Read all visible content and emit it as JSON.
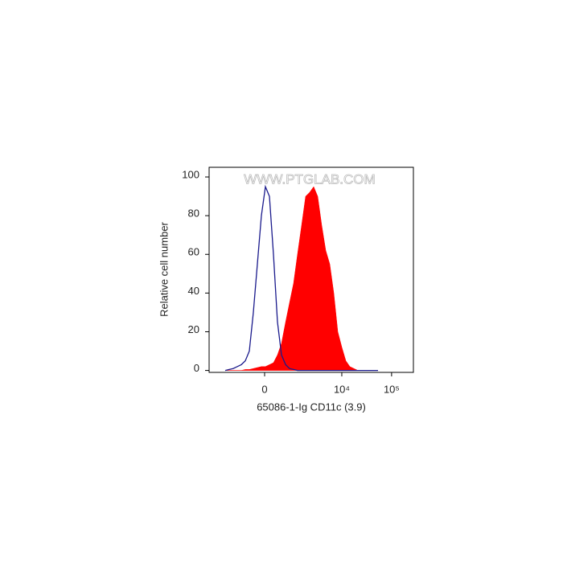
{
  "chart_data": {
    "type": "line",
    "watermark": "WWW.PTGLAB.COM",
    "xlabel": "65086-1-Ig CD11c (3.9)",
    "ylabel": "Relative cell number",
    "xscale": "biexponential",
    "xscale_width": 565,
    "xlim": [
      -3650,
      274000
    ],
    "ylim": [
      -1,
      105
    ],
    "xticks": [
      0,
      {
        "value": 10000,
        "label": "10⁴"
      },
      {
        "value": 100000,
        "label": "10⁵"
      }
    ],
    "yticks": [
      0,
      20,
      40,
      60,
      80,
      100
    ],
    "x": [
      -1700,
      -1396,
      -1141,
      -921,
      -735,
      -574,
      -433,
      -307,
      -193,
      -85,
      21,
      127,
      237,
      356,
      488,
      637,
      805,
      1003,
      1232,
      1511,
      1836,
      2226,
      2701,
      3260,
      3932,
      4752,
      5723,
      6899,
      8317,
      10017,
      12074,
      14520,
      17492,
      21075,
      25369,
      36782,
      53393
    ],
    "series": [
      {
        "color": "#ff0000",
        "fill": true,
        "values": [
          0,
          0,
          0,
          0,
          0,
          0.5,
          0.5,
          1,
          1.5,
          2,
          2,
          3,
          4,
          8,
          14,
          25,
          35,
          45,
          60,
          75,
          90,
          92,
          95,
          90,
          75,
          62,
          55,
          40,
          20,
          12,
          5,
          2,
          1,
          0,
          0,
          0,
          0
        ]
      },
      {
        "color": "#1a1a8c",
        "fill": false,
        "values": [
          0,
          0.5,
          1,
          2,
          3,
          5,
          10,
          30,
          55,
          80,
          95,
          90,
          60,
          25,
          8,
          3,
          1,
          0.5,
          0,
          0,
          0,
          0,
          0,
          0,
          0,
          0,
          0,
          0,
          0,
          0,
          0,
          0,
          0,
          0,
          0,
          0,
          0
        ]
      }
    ]
  }
}
